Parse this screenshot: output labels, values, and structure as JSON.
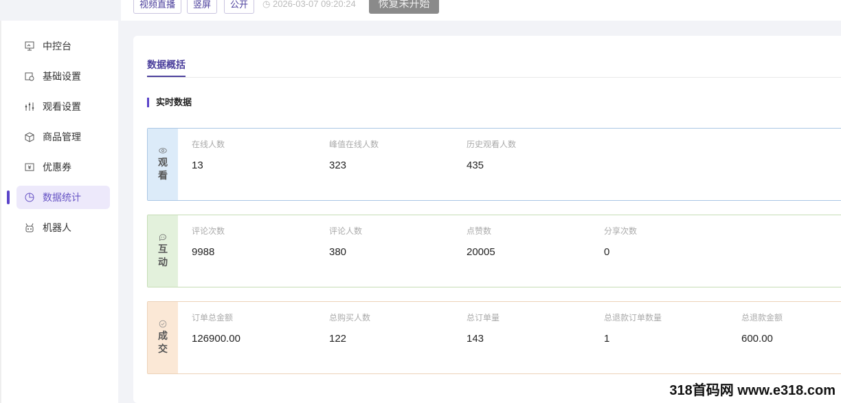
{
  "header": {
    "tags": [
      "视频直播",
      "竖屏",
      "公开"
    ],
    "time": "2026-03-07 09:20:24",
    "resume_button": "恢复未开始"
  },
  "sidebar": {
    "items": [
      {
        "label": "中控台",
        "icon": "monitor-icon"
      },
      {
        "label": "基础设置",
        "icon": "settings-icon"
      },
      {
        "label": "观看设置",
        "icon": "sliders-icon"
      },
      {
        "label": "商品管理",
        "icon": "box-icon"
      },
      {
        "label": "优惠券",
        "icon": "coupon-icon"
      },
      {
        "label": "数据统计",
        "icon": "pie-chart-icon",
        "active": true
      },
      {
        "label": "机器人",
        "icon": "robot-icon"
      }
    ]
  },
  "main": {
    "tab": "数据概括",
    "section": "实时数据",
    "cards": [
      {
        "label": [
          "观",
          "看"
        ],
        "icon": "eye-icon",
        "color": "#a9c6e4",
        "bg": "#dcebf9",
        "stats": [
          {
            "k": "在线人数",
            "v": "13"
          },
          {
            "k": "峰值在线人数",
            "v": "323"
          },
          {
            "k": "历史观看人数",
            "v": "435"
          }
        ]
      },
      {
        "label": [
          "互",
          "动"
        ],
        "icon": "chat-icon",
        "color": "#c5dcb5",
        "bg": "#e3f1dc",
        "stats": [
          {
            "k": "评论次数",
            "v": "9988"
          },
          {
            "k": "评论人数",
            "v": "380"
          },
          {
            "k": "点赞数",
            "v": "20005"
          },
          {
            "k": "分享次数",
            "v": "0"
          }
        ]
      },
      {
        "label": [
          "成",
          "交"
        ],
        "icon": "check-circle-icon",
        "color": "#ecd2b8",
        "bg": "#fbe8d6",
        "stats": [
          {
            "k": "订单总金额",
            "v": "126900.00"
          },
          {
            "k": "总购买人数",
            "v": "122"
          },
          {
            "k": "总订单量",
            "v": "143"
          },
          {
            "k": "总退款订单数量",
            "v": "1"
          },
          {
            "k": "总退款金额",
            "v": "600.00"
          }
        ]
      }
    ]
  },
  "watermark": "318首码网 www.e318.com"
}
